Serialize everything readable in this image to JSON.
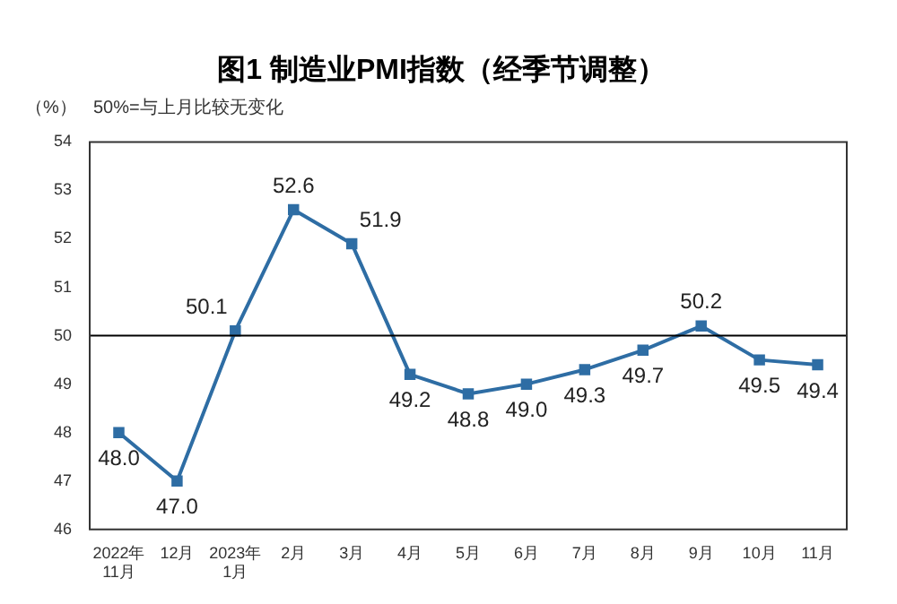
{
  "chart_data": {
    "type": "line",
    "title": "图1 制造业PMI指数（经季节调整）",
    "ylabel": "（%）",
    "annotations": [
      "50%=与上月比较无变化"
    ],
    "categories": [
      "2022年\n11月",
      "12月",
      "2023年\n1月",
      "2月",
      "3月",
      "4月",
      "5月",
      "6月",
      "7月",
      "8月",
      "9月",
      "10月",
      "11月"
    ],
    "series": [
      {
        "color": "#2e6da4",
        "values": [
          48.0,
          47.0,
          50.1,
          52.6,
          51.9,
          49.2,
          48.8,
          49.0,
          49.3,
          49.7,
          50.2,
          49.5,
          49.4
        ],
        "value_labels": [
          "48.0",
          "47.0",
          "50.1",
          "52.6",
          "51.9",
          "49.2",
          "48.8",
          "49.0",
          "49.3",
          "49.7",
          "50.2",
          "49.5",
          "49.4"
        ]
      }
    ],
    "ylim": [
      46,
      54
    ],
    "yticks": [
      46,
      47,
      48,
      49,
      50,
      51,
      52,
      53,
      54
    ],
    "ref_lines": [
      {
        "axis": "y",
        "value": 50,
        "color": "#000000"
      }
    ],
    "marker": "square",
    "grid": false,
    "legend": false
  }
}
